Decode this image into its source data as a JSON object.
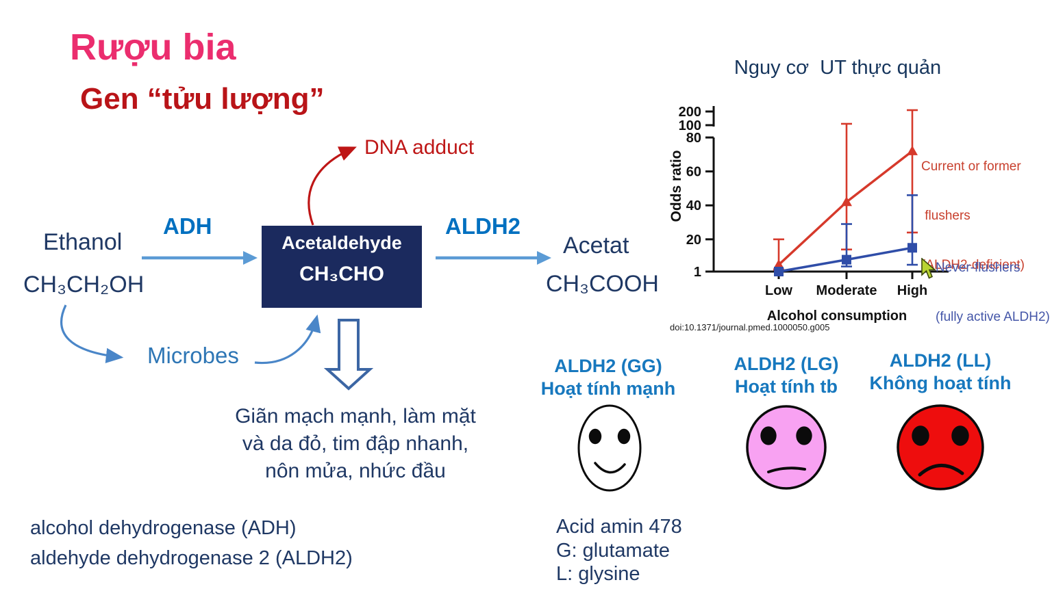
{
  "slide_title": "Rượu bia",
  "slide_subtitle": "Gen “tửu lượng”",
  "pathway": {
    "dna_adduct": "DNA adduct",
    "ethanol": "Ethanol",
    "ethanol_formula": "CH₃CH₂OH",
    "adh": "ADH",
    "acetaldehyde": "Acetaldehyde",
    "acetaldehyde_formula": "CH₃CHO",
    "aldh2": "ALDH2",
    "acetate": "Acetat",
    "acetate_formula": "CH₃COOH",
    "microbes": "Microbes",
    "effects_lines": [
      "Giãn mạch mạnh, làm mặt",
      "và da đỏ, tim đập nhanh,",
      "nôn mửa, nhức đầu"
    ]
  },
  "footnotes_left": [
    "alcohol dehydrogenase (ADH)",
    "aldehyde dehydrogenase 2 (ALDH2)"
  ],
  "footnotes_right": [
    "Acid amin 478",
    "G: glutamate",
    "L: glysine"
  ],
  "genotypes": [
    {
      "gene": "ALDH2 (GG)",
      "activity": "Hoạt tính mạnh",
      "face_color": "#FFFFFF",
      "mood": "happy"
    },
    {
      "gene": "ALDH2 (LG)",
      "activity": "Hoạt tính tb",
      "face_color": "#F8A2F2",
      "mood": "neutral"
    },
    {
      "gene": "ALDH2 (LL)",
      "activity": "Không hoạt tính",
      "face_color": "#EE0D0D",
      "mood": "sad"
    }
  ],
  "chart_data": {
    "type": "line",
    "title": "Nguy cơ  UT thực quản",
    "xlabel": "Alcohol consumption",
    "ylabel": "Odds ratio",
    "categories": [
      "Low",
      "Moderate",
      "High"
    ],
    "y_ticks": [
      1,
      20,
      40,
      60,
      80,
      100,
      200
    ],
    "y_axis_note": "broken y-axis: linear 1-80, compressed above 80",
    "grid": false,
    "legend_position": "right",
    "series": [
      {
        "name": "Current or former flushers (ALDH2-deficient)",
        "legend_lines": [
          "Current or former",
          " flushers",
          "(ALDH2-deficient)"
        ],
        "color": "#D6392B",
        "marker": "triangle",
        "values": [
          5,
          42,
          72
        ],
        "ci_low": [
          2,
          14,
          24
        ],
        "ci_high": [
          20,
          110,
          210
        ]
      },
      {
        "name": "Never-flushers (fully active ALDH2)",
        "legend_lines": [
          "Never-flushers",
          "(fully active ALDH2)"
        ],
        "color": "#2F4DA8",
        "marker": "square",
        "values": [
          1,
          8,
          15
        ],
        "ci_low": [
          1,
          4,
          5
        ],
        "ci_high": [
          1,
          29,
          46
        ]
      }
    ],
    "source": "doi:10.1371/journal.pmed.1000050.g005"
  },
  "colors": {
    "title_pink": "#EB2D6E",
    "subtitle_red": "#B91418",
    "navy_text": "#1F3864",
    "enzyme_blue": "#0070C0",
    "arrow_blue": "#5B9BD5",
    "microbes_blue": "#2E76B5",
    "dna_red": "#BE1616",
    "box_navy": "#1B2A5E",
    "genotype_label_blue": "#1778BE"
  }
}
